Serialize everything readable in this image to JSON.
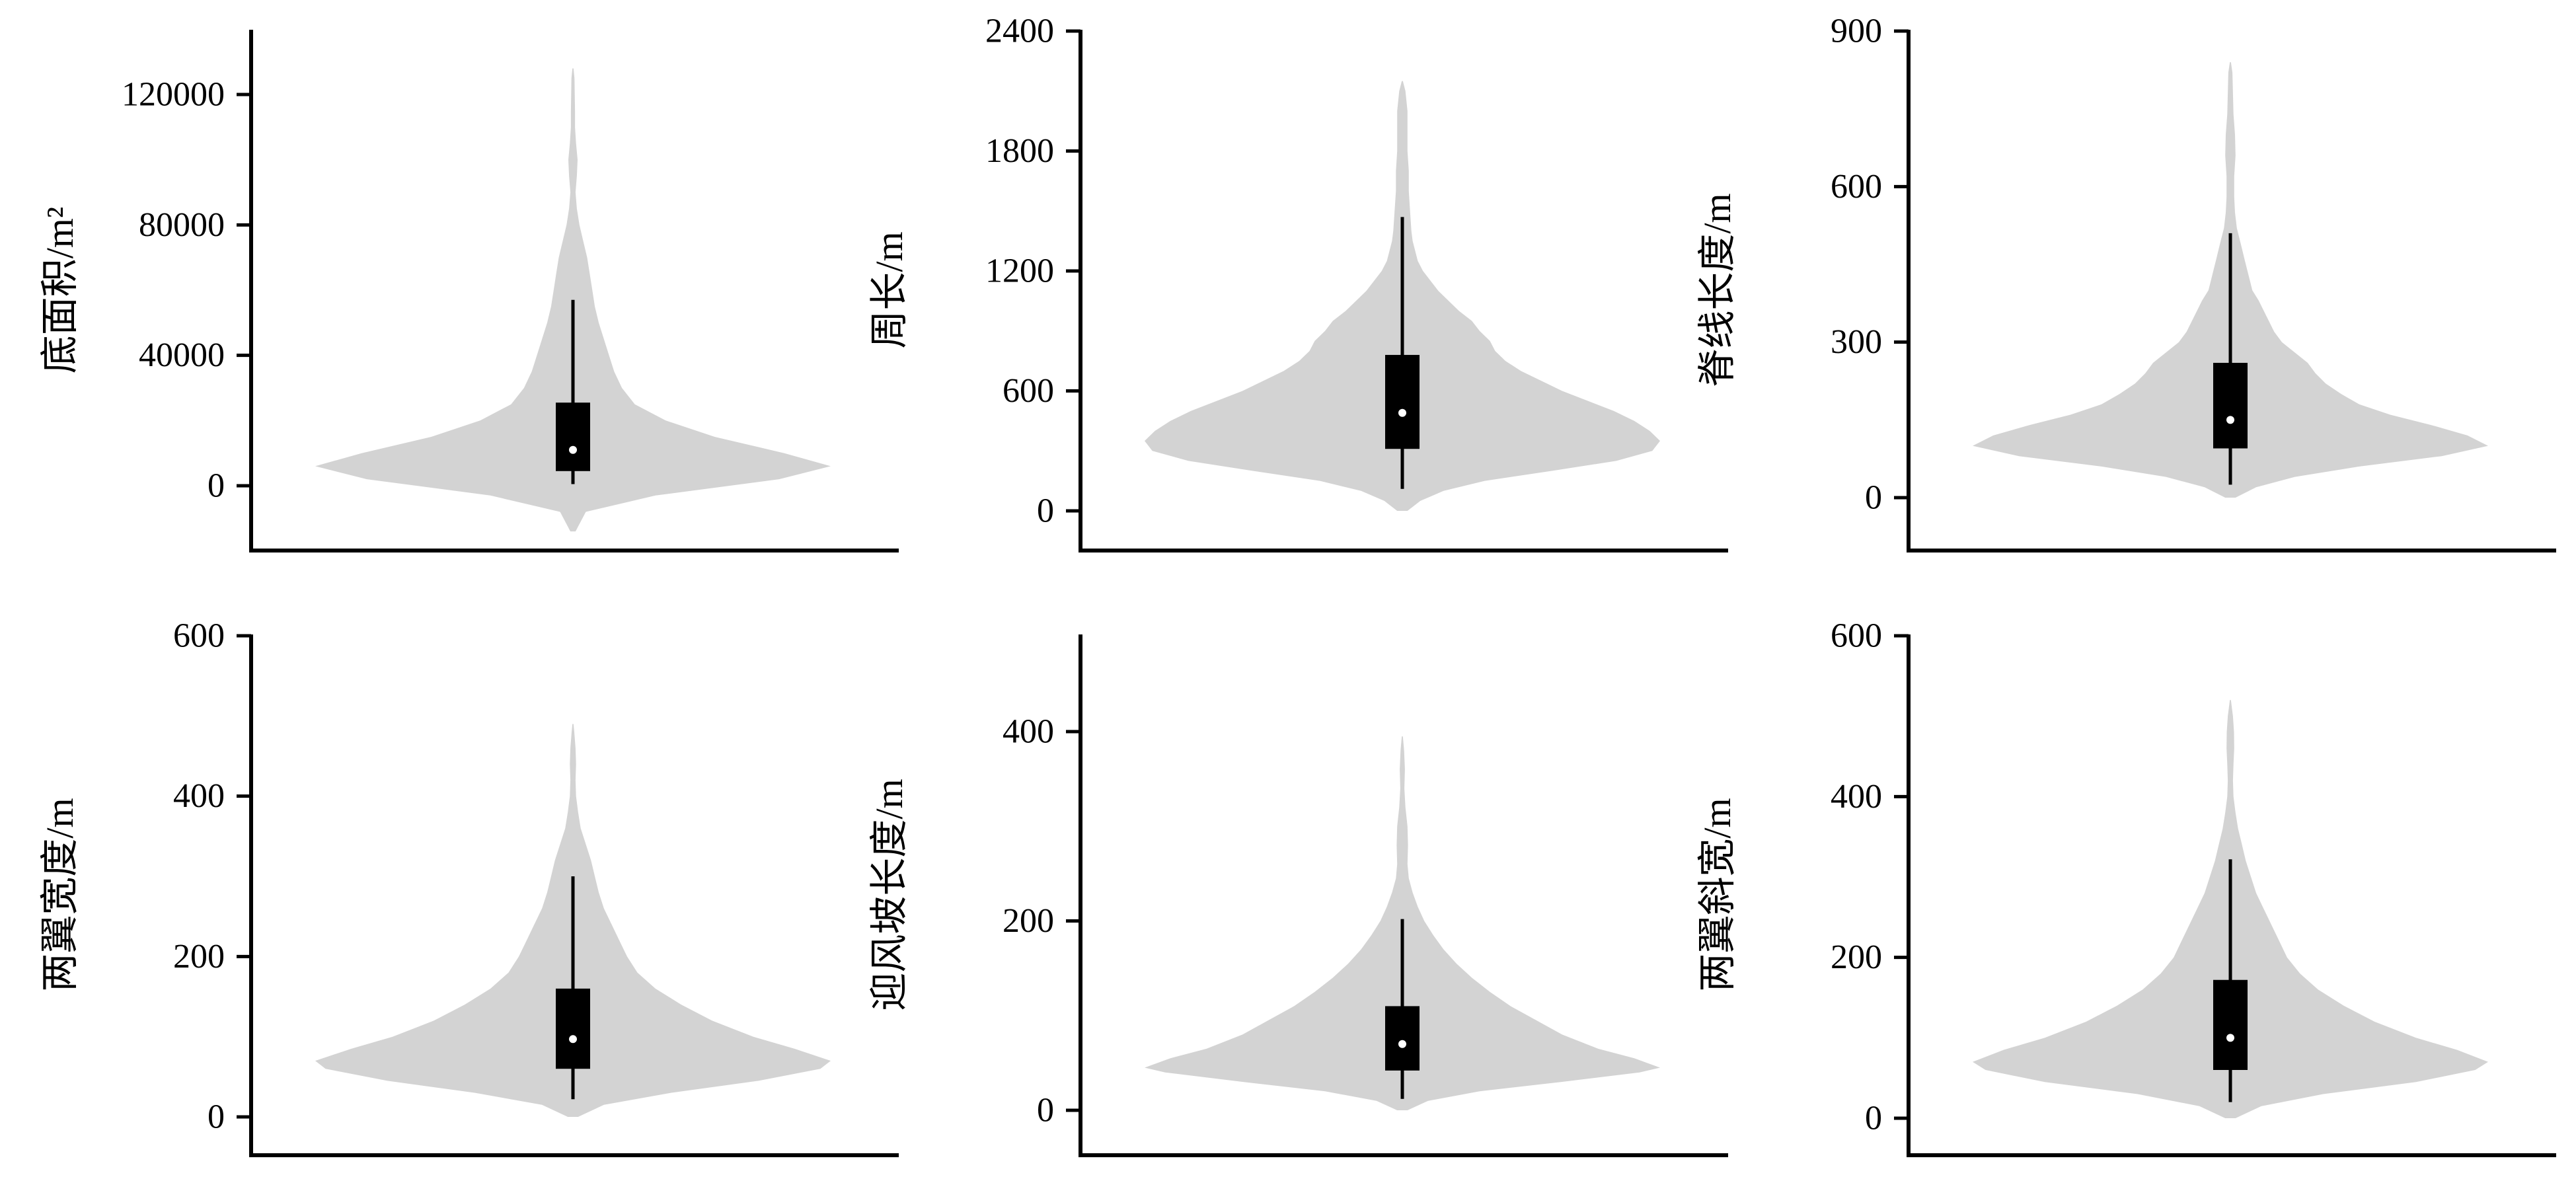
{
  "style": {
    "violin_color": "#d3d3d3",
    "box_color": "#000000",
    "median_color": "#ffffff"
  },
  "chart_data": [
    {
      "type": "violin",
      "ylabel": "底面积/m²",
      "ylim": [
        -20000,
        140000
      ],
      "yticks": [
        0,
        40000,
        80000,
        120000
      ],
      "violin": {
        "min": -14000,
        "max": 128000,
        "profile": [
          [
            -14000,
            0.01
          ],
          [
            -8000,
            0.05
          ],
          [
            -3000,
            0.32
          ],
          [
            2000,
            0.8
          ],
          [
            6000,
            1.0
          ],
          [
            10000,
            0.82
          ],
          [
            15000,
            0.55
          ],
          [
            20000,
            0.36
          ],
          [
            25000,
            0.24
          ],
          [
            30000,
            0.19
          ],
          [
            35000,
            0.16
          ],
          [
            40000,
            0.14
          ],
          [
            45000,
            0.12
          ],
          [
            50000,
            0.1
          ],
          [
            55000,
            0.085
          ],
          [
            60000,
            0.075
          ],
          [
            65000,
            0.065
          ],
          [
            70000,
            0.055
          ],
          [
            75000,
            0.04
          ],
          [
            80000,
            0.025
          ],
          [
            85000,
            0.015
          ],
          [
            90000,
            0.01
          ],
          [
            95000,
            0.015
          ],
          [
            100000,
            0.018
          ],
          [
            105000,
            0.012
          ],
          [
            110000,
            0.008
          ],
          [
            115000,
            0.008
          ],
          [
            120000,
            0.007
          ],
          [
            125000,
            0.006
          ],
          [
            128000,
            0.002
          ]
        ]
      },
      "box": {
        "q1": 4500,
        "median": 11000,
        "q3": 25500,
        "whisker_low": 500,
        "whisker_high": 57000
      }
    },
    {
      "type": "violin",
      "ylabel": "周长/m",
      "ylim": [
        -200,
        2400
      ],
      "yticks": [
        0,
        600,
        1200,
        1800,
        2400
      ],
      "violin": {
        "min": 0,
        "max": 2150,
        "profile": [
          [
            0,
            0.02
          ],
          [
            50,
            0.07
          ],
          [
            100,
            0.16
          ],
          [
            150,
            0.32
          ],
          [
            200,
            0.58
          ],
          [
            250,
            0.83
          ],
          [
            300,
            0.97
          ],
          [
            350,
            1.0
          ],
          [
            400,
            0.96
          ],
          [
            450,
            0.9
          ],
          [
            500,
            0.82
          ],
          [
            550,
            0.72
          ],
          [
            600,
            0.62
          ],
          [
            650,
            0.54
          ],
          [
            700,
            0.46
          ],
          [
            750,
            0.4
          ],
          [
            800,
            0.36
          ],
          [
            850,
            0.34
          ],
          [
            900,
            0.3
          ],
          [
            950,
            0.27
          ],
          [
            1000,
            0.22
          ],
          [
            1050,
            0.18
          ],
          [
            1100,
            0.14
          ],
          [
            1150,
            0.11
          ],
          [
            1200,
            0.08
          ],
          [
            1250,
            0.06
          ],
          [
            1300,
            0.05
          ],
          [
            1350,
            0.04
          ],
          [
            1400,
            0.035
          ],
          [
            1500,
            0.03
          ],
          [
            1600,
            0.025
          ],
          [
            1700,
            0.025
          ],
          [
            1800,
            0.02
          ],
          [
            1900,
            0.02
          ],
          [
            2000,
            0.02
          ],
          [
            2100,
            0.012
          ],
          [
            2150,
            0.002
          ]
        ]
      },
      "box": {
        "q1": 310,
        "median": 490,
        "q3": 780,
        "whisker_low": 110,
        "whisker_high": 1470
      }
    },
    {
      "type": "violin",
      "ylabel": "脊线长度/m",
      "ylim": [
        -100,
        900
      ],
      "yticks": [
        0,
        300,
        600,
        900
      ],
      "violin": {
        "min": 0,
        "max": 840,
        "profile": [
          [
            0,
            0.02
          ],
          [
            20,
            0.1
          ],
          [
            40,
            0.25
          ],
          [
            60,
            0.5
          ],
          [
            80,
            0.82
          ],
          [
            100,
            1.0
          ],
          [
            120,
            0.92
          ],
          [
            140,
            0.78
          ],
          [
            160,
            0.62
          ],
          [
            180,
            0.5
          ],
          [
            200,
            0.43
          ],
          [
            220,
            0.37
          ],
          [
            240,
            0.33
          ],
          [
            260,
            0.3
          ],
          [
            280,
            0.25
          ],
          [
            300,
            0.2
          ],
          [
            320,
            0.17
          ],
          [
            340,
            0.15
          ],
          [
            360,
            0.13
          ],
          [
            380,
            0.11
          ],
          [
            400,
            0.085
          ],
          [
            420,
            0.075
          ],
          [
            440,
            0.065
          ],
          [
            460,
            0.055
          ],
          [
            480,
            0.045
          ],
          [
            500,
            0.035
          ],
          [
            520,
            0.025
          ],
          [
            550,
            0.018
          ],
          [
            580,
            0.015
          ],
          [
            620,
            0.015
          ],
          [
            660,
            0.02
          ],
          [
            700,
            0.018
          ],
          [
            740,
            0.012
          ],
          [
            780,
            0.01
          ],
          [
            820,
            0.008
          ],
          [
            840,
            0.002
          ]
        ]
      },
      "box": {
        "q1": 95,
        "median": 150,
        "q3": 260,
        "whisker_low": 25,
        "whisker_high": 510
      }
    },
    {
      "type": "violin",
      "ylabel": "两翼宽度/m",
      "ylim": [
        -50,
        600
      ],
      "yticks": [
        0,
        200,
        400,
        600
      ],
      "violin": {
        "min": 0,
        "max": 490,
        "profile": [
          [
            0,
            0.02
          ],
          [
            15,
            0.12
          ],
          [
            30,
            0.38
          ],
          [
            45,
            0.72
          ],
          [
            60,
            0.96
          ],
          [
            70,
            1.0
          ],
          [
            85,
            0.86
          ],
          [
            100,
            0.7
          ],
          [
            120,
            0.54
          ],
          [
            140,
            0.42
          ],
          [
            160,
            0.32
          ],
          [
            180,
            0.25
          ],
          [
            200,
            0.21
          ],
          [
            220,
            0.18
          ],
          [
            240,
            0.15
          ],
          [
            260,
            0.12
          ],
          [
            280,
            0.1
          ],
          [
            300,
            0.085
          ],
          [
            320,
            0.07
          ],
          [
            340,
            0.05
          ],
          [
            360,
            0.03
          ],
          [
            380,
            0.02
          ],
          [
            400,
            0.012
          ],
          [
            420,
            0.01
          ],
          [
            440,
            0.012
          ],
          [
            460,
            0.01
          ],
          [
            480,
            0.005
          ],
          [
            490,
            0.002
          ]
        ]
      },
      "box": {
        "q1": 60,
        "median": 97,
        "q3": 160,
        "whisker_low": 22,
        "whisker_high": 300
      }
    },
    {
      "type": "violin",
      "ylabel": "迎风坡长度/m",
      "ylim": [
        -30,
        500
      ],
      "yticks": [
        0,
        200,
        400
      ],
      "violin": {
        "min": 0,
        "max": 395,
        "profile": [
          [
            0,
            0.02
          ],
          [
            10,
            0.1
          ],
          [
            20,
            0.3
          ],
          [
            30,
            0.62
          ],
          [
            40,
            0.92
          ],
          [
            45,
            1.0
          ],
          [
            55,
            0.9
          ],
          [
            65,
            0.76
          ],
          [
            80,
            0.62
          ],
          [
            95,
            0.52
          ],
          [
            110,
            0.42
          ],
          [
            125,
            0.34
          ],
          [
            140,
            0.27
          ],
          [
            155,
            0.21
          ],
          [
            170,
            0.16
          ],
          [
            185,
            0.12
          ],
          [
            200,
            0.085
          ],
          [
            215,
            0.06
          ],
          [
            230,
            0.04
          ],
          [
            245,
            0.025
          ],
          [
            260,
            0.02
          ],
          [
            280,
            0.022
          ],
          [
            300,
            0.02
          ],
          [
            320,
            0.012
          ],
          [
            340,
            0.008
          ],
          [
            360,
            0.01
          ],
          [
            380,
            0.007
          ],
          [
            395,
            0.002
          ]
        ]
      },
      "box": {
        "q1": 42,
        "median": 70,
        "q3": 110,
        "whisker_low": 12,
        "whisker_high": 202
      }
    },
    {
      "type": "violin",
      "ylabel": "两翼斜宽/m",
      "ylim": [
        -50,
        600
      ],
      "yticks": [
        0,
        200,
        400,
        600
      ],
      "violin": {
        "min": 0,
        "max": 520,
        "profile": [
          [
            0,
            0.02
          ],
          [
            15,
            0.12
          ],
          [
            30,
            0.36
          ],
          [
            45,
            0.72
          ],
          [
            60,
            0.95
          ],
          [
            70,
            1.0
          ],
          [
            85,
            0.88
          ],
          [
            100,
            0.72
          ],
          [
            120,
            0.56
          ],
          [
            140,
            0.44
          ],
          [
            160,
            0.34
          ],
          [
            180,
            0.27
          ],
          [
            200,
            0.22
          ],
          [
            220,
            0.19
          ],
          [
            240,
            0.16
          ],
          [
            260,
            0.13
          ],
          [
            280,
            0.1
          ],
          [
            300,
            0.08
          ],
          [
            320,
            0.06
          ],
          [
            340,
            0.045
          ],
          [
            360,
            0.03
          ],
          [
            380,
            0.02
          ],
          [
            400,
            0.012
          ],
          [
            420,
            0.01
          ],
          [
            440,
            0.012
          ],
          [
            460,
            0.015
          ],
          [
            480,
            0.014
          ],
          [
            500,
            0.01
          ],
          [
            520,
            0.002
          ]
        ]
      },
      "box": {
        "q1": 60,
        "median": 100,
        "q3": 172,
        "whisker_low": 20,
        "whisker_high": 322
      }
    }
  ]
}
